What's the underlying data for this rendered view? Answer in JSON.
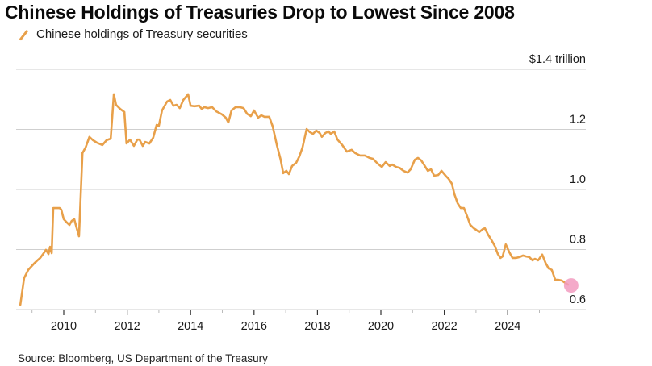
{
  "title": "Chinese Holdings of Treasuries Drop to Lowest Since 2008",
  "source": "Source: Bloomberg, US Department of the Treasury",
  "colors": {
    "series": "#e8a04a",
    "end_marker": "#f29bbf",
    "grid": "#cfcfcf"
  },
  "chart_data": {
    "type": "line",
    "title": "Chinese Holdings of Treasuries Drop to Lowest Since 2008",
    "xlabel": "",
    "ylabel": "",
    "unit_label": "$1.4 trillion",
    "legend": {
      "position": "top-left",
      "entries": [
        "Chinese holdings of Treasury securities"
      ]
    },
    "grid": true,
    "xlim": [
      2008.5,
      2026.4
    ],
    "ylim": [
      0.6,
      1.4
    ],
    "x_ticks": [
      2010,
      2012,
      2014,
      2016,
      2018,
      2020,
      2022,
      2024
    ],
    "x_tick_labels": [
      "2010",
      "2012",
      "2014",
      "2016",
      "2018",
      "2020",
      "2022",
      "2024"
    ],
    "x_minor_ticks": [
      2009,
      2011,
      2013,
      2015,
      2017,
      2019,
      2021,
      2023,
      2025
    ],
    "y_ticks": [
      0.6,
      0.8,
      1.0,
      1.2,
      1.4
    ],
    "y_tick_labels": [
      "0.6",
      "0.8",
      "1.0",
      "1.2",
      "$1.4 trillion"
    ],
    "series": [
      {
        "name": "Chinese holdings of Treasury securities",
        "unit": "trillion USD",
        "x": [
          2008.63,
          2008.75,
          2008.88,
          2009.06,
          2009.19,
          2009.26,
          2009.39,
          2009.44,
          2009.52,
          2009.57,
          2009.62,
          2009.67,
          2009.77,
          2009.87,
          2009.92,
          2010.0,
          2010.1,
          2010.18,
          2010.25,
          2010.33,
          2010.41,
          2010.48,
          2010.59,
          2010.69,
          2010.81,
          2010.92,
          2011.04,
          2011.22,
          2011.35,
          2011.48,
          2011.58,
          2011.65,
          2011.78,
          2011.91,
          2011.98,
          2012.09,
          2012.21,
          2012.32,
          2012.39,
          2012.49,
          2012.57,
          2012.7,
          2012.82,
          2012.93,
          2013.0,
          2013.1,
          2013.26,
          2013.36,
          2013.46,
          2013.56,
          2013.66,
          2013.77,
          2013.92,
          2014.0,
          2014.12,
          2014.27,
          2014.35,
          2014.43,
          2014.55,
          2014.68,
          2014.81,
          2014.99,
          2015.11,
          2015.19,
          2015.29,
          2015.42,
          2015.55,
          2015.67,
          2015.78,
          2015.9,
          2016.0,
          2016.13,
          2016.23,
          2016.33,
          2016.48,
          2016.59,
          2016.72,
          2016.84,
          2016.92,
          2017.02,
          2017.1,
          2017.2,
          2017.33,
          2017.43,
          2017.53,
          2017.66,
          2017.76,
          2017.86,
          2017.96,
          2018.07,
          2018.14,
          2018.25,
          2018.35,
          2018.42,
          2018.53,
          2018.63,
          2018.78,
          2018.93,
          2019.08,
          2019.19,
          2019.34,
          2019.49,
          2019.64,
          2019.75,
          2019.9,
          2020.03,
          2020.15,
          2020.28,
          2020.36,
          2020.48,
          2020.59,
          2020.71,
          2020.84,
          2020.94,
          2021.07,
          2021.17,
          2021.27,
          2021.37,
          2021.48,
          2021.58,
          2021.68,
          2021.81,
          2021.91,
          2022.04,
          2022.14,
          2022.24,
          2022.32,
          2022.42,
          2022.52,
          2022.62,
          2022.72,
          2022.82,
          2022.93,
          2023.0,
          2023.1,
          2023.21,
          2023.28,
          2023.38,
          2023.49,
          2023.59,
          2023.69,
          2023.77,
          2023.84,
          2023.94,
          2024.05,
          2024.15,
          2024.27,
          2024.38,
          2024.48,
          2024.58,
          2024.68,
          2024.78,
          2024.86,
          2024.96,
          2025.09,
          2025.19,
          2025.29,
          2025.39,
          2025.5,
          2025.6,
          2025.7,
          2025.9
        ],
        "values": [
          0.616,
          0.705,
          0.732,
          0.753,
          0.766,
          0.772,
          0.791,
          0.799,
          0.785,
          0.809,
          0.788,
          0.938,
          0.938,
          0.938,
          0.933,
          0.901,
          0.89,
          0.882,
          0.895,
          0.901,
          0.871,
          0.844,
          1.121,
          1.14,
          1.175,
          1.164,
          1.156,
          1.148,
          1.164,
          1.169,
          1.317,
          1.282,
          1.268,
          1.258,
          1.153,
          1.166,
          1.145,
          1.166,
          1.166,
          1.145,
          1.158,
          1.153,
          1.172,
          1.215,
          1.212,
          1.263,
          1.293,
          1.298,
          1.279,
          1.282,
          1.271,
          1.298,
          1.317,
          1.279,
          1.277,
          1.279,
          1.268,
          1.274,
          1.271,
          1.274,
          1.26,
          1.25,
          1.239,
          1.223,
          1.263,
          1.274,
          1.274,
          1.271,
          1.252,
          1.244,
          1.263,
          1.239,
          1.247,
          1.242,
          1.242,
          1.209,
          1.148,
          1.099,
          1.054,
          1.062,
          1.051,
          1.078,
          1.089,
          1.11,
          1.14,
          1.201,
          1.191,
          1.185,
          1.196,
          1.188,
          1.175,
          1.188,
          1.193,
          1.185,
          1.193,
          1.166,
          1.148,
          1.126,
          1.132,
          1.121,
          1.113,
          1.113,
          1.105,
          1.102,
          1.086,
          1.075,
          1.091,
          1.078,
          1.083,
          1.075,
          1.072,
          1.062,
          1.056,
          1.067,
          1.099,
          1.105,
          1.097,
          1.081,
          1.062,
          1.067,
          1.046,
          1.048,
          1.062,
          1.046,
          1.035,
          1.019,
          0.984,
          0.954,
          0.938,
          0.938,
          0.911,
          0.882,
          0.871,
          0.866,
          0.858,
          0.868,
          0.871,
          0.85,
          0.831,
          0.812,
          0.785,
          0.772,
          0.777,
          0.817,
          0.791,
          0.772,
          0.772,
          0.775,
          0.78,
          0.777,
          0.775,
          0.764,
          0.769,
          0.764,
          0.783,
          0.756,
          0.737,
          0.732,
          0.699,
          0.699,
          0.697,
          0.683
        ]
      }
    ],
    "annotations": [
      {
        "type": "end-marker",
        "x": 2025.9,
        "value": 0.683,
        "label": "latest value highlight"
      }
    ]
  }
}
